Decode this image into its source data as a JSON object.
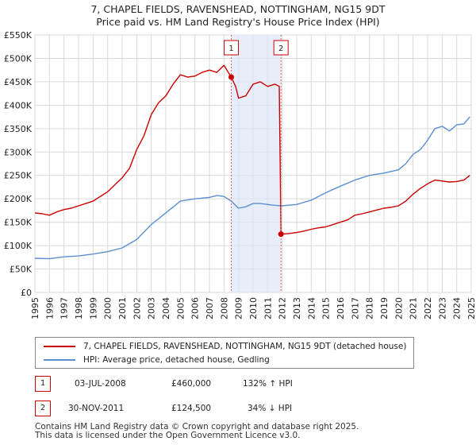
{
  "header": {
    "title_line1": "7, CHAPEL FIELDS, RAVENSHEAD, NOTTINGHAM, NG15 9DT",
    "title_line2": "Price paid vs. HM Land Registry's House Price Index (HPI)"
  },
  "chart_data": {
    "type": "line",
    "ylim": [
      0,
      550000
    ],
    "xlim": [
      1995,
      2025
    ],
    "y_ticks": [
      "£0",
      "£50K",
      "£100K",
      "£150K",
      "£200K",
      "£250K",
      "£300K",
      "£350K",
      "£400K",
      "£450K",
      "£500K",
      "£550K"
    ],
    "x_ticks": [
      "1995",
      "1996",
      "1997",
      "1998",
      "1999",
      "2000",
      "2001",
      "2002",
      "2003",
      "2004",
      "2005",
      "2006",
      "2007",
      "2008",
      "2009",
      "2010",
      "2011",
      "2012",
      "2013",
      "2014",
      "2015",
      "2016",
      "2017",
      "2018",
      "2019",
      "2020",
      "2021",
      "2022",
      "2023",
      "2024",
      "2025"
    ],
    "series": [
      {
        "name": "7, CHAPEL FIELDS, RAVENSHEAD, NOTTINGHAM, NG15 9DT (detached house)",
        "color": "#cc0000",
        "x": [
          1995.0,
          1995.5,
          1996.0,
          1996.5,
          1997.0,
          1997.5,
          1998.0,
          1998.5,
          1999.0,
          1999.5,
          2000.0,
          2000.5,
          2001.0,
          2001.5,
          2002.0,
          2002.5,
          2003.0,
          2003.5,
          2004.0,
          2004.5,
          2005.0,
          2005.5,
          2006.0,
          2006.5,
          2007.0,
          2007.5,
          2008.0,
          2008.5,
          2008.8,
          2009.0,
          2009.5,
          2010.0,
          2010.5,
          2011.0,
          2011.5,
          2011.8,
          2011.92,
          2012.5,
          2013.0,
          2013.5,
          2014.0,
          2014.5,
          2015.0,
          2015.5,
          2016.0,
          2016.5,
          2017.0,
          2017.5,
          2018.0,
          2018.5,
          2019.0,
          2019.5,
          2020.0,
          2020.5,
          2021.0,
          2021.5,
          2022.0,
          2022.5,
          2023.0,
          2023.5,
          2024.0,
          2024.5,
          2024.9
        ],
        "values": [
          170000,
          168000,
          165000,
          172000,
          177000,
          180000,
          185000,
          190000,
          195000,
          205000,
          215000,
          230000,
          245000,
          265000,
          305000,
          335000,
          380000,
          405000,
          420000,
          445000,
          465000,
          460000,
          462000,
          470000,
          475000,
          470000,
          485000,
          460000,
          440000,
          415000,
          420000,
          445000,
          450000,
          440000,
          445000,
          440000,
          124500,
          126000,
          128000,
          131000,
          135000,
          138000,
          140000,
          145000,
          150000,
          155000,
          165000,
          168000,
          172000,
          176000,
          180000,
          182000,
          185000,
          195000,
          210000,
          222000,
          232000,
          240000,
          238000,
          236000,
          237000,
          240000,
          250000
        ]
      },
      {
        "name": "HPI: Average price, detached house, Gedling",
        "color": "#5b8fd1",
        "x": [
          1995.0,
          1996.0,
          1997.0,
          1998.0,
          1999.0,
          2000.0,
          2001.0,
          2002.0,
          2003.0,
          2004.0,
          2005.0,
          2006.0,
          2007.0,
          2007.5,
          2008.0,
          2008.5,
          2009.0,
          2009.5,
          2010.0,
          2010.5,
          2011.0,
          2011.5,
          2012.0,
          2013.0,
          2014.0,
          2015.0,
          2016.0,
          2017.0,
          2018.0,
          2019.0,
          2020.0,
          2020.5,
          2021.0,
          2021.5,
          2022.0,
          2022.5,
          2023.0,
          2023.5,
          2024.0,
          2024.5,
          2024.9
        ],
        "values": [
          73000,
          72000,
          76000,
          78000,
          82000,
          87000,
          95000,
          113000,
          145000,
          170000,
          195000,
          200000,
          203000,
          207000,
          205000,
          195000,
          180000,
          183000,
          190000,
          190000,
          188000,
          186000,
          185000,
          188000,
          197000,
          213000,
          227000,
          240000,
          250000,
          255000,
          262000,
          275000,
          295000,
          305000,
          325000,
          350000,
          355000,
          345000,
          358000,
          360000,
          375000
        ]
      }
    ],
    "sales": [
      {
        "label": "1",
        "x": 2008.5,
        "value": 460000
      },
      {
        "label": "2",
        "x": 2011.92,
        "value": 124500
      }
    ],
    "shaded_span": [
      2008.5,
      2011.92
    ]
  },
  "legend": {
    "items": [
      {
        "label": "7, CHAPEL FIELDS, RAVENSHEAD, NOTTINGHAM, NG15 9DT (detached house)",
        "color": "#cc0000"
      },
      {
        "label": "HPI: Average price, detached house, Gedling",
        "color": "#5b8fd1"
      }
    ]
  },
  "transactions": [
    {
      "num": "1",
      "date": "03-JUL-2008",
      "price": "£460,000",
      "hpi": "132% ↑ HPI"
    },
    {
      "num": "2",
      "date": "30-NOV-2011",
      "price": "£124,500",
      "hpi": "34% ↓ HPI"
    }
  ],
  "footer": {
    "line1": "Contains HM Land Registry data © Crown copyright and database right 2025.",
    "line2": "This data is licensed under the Open Government Licence v3.0."
  }
}
